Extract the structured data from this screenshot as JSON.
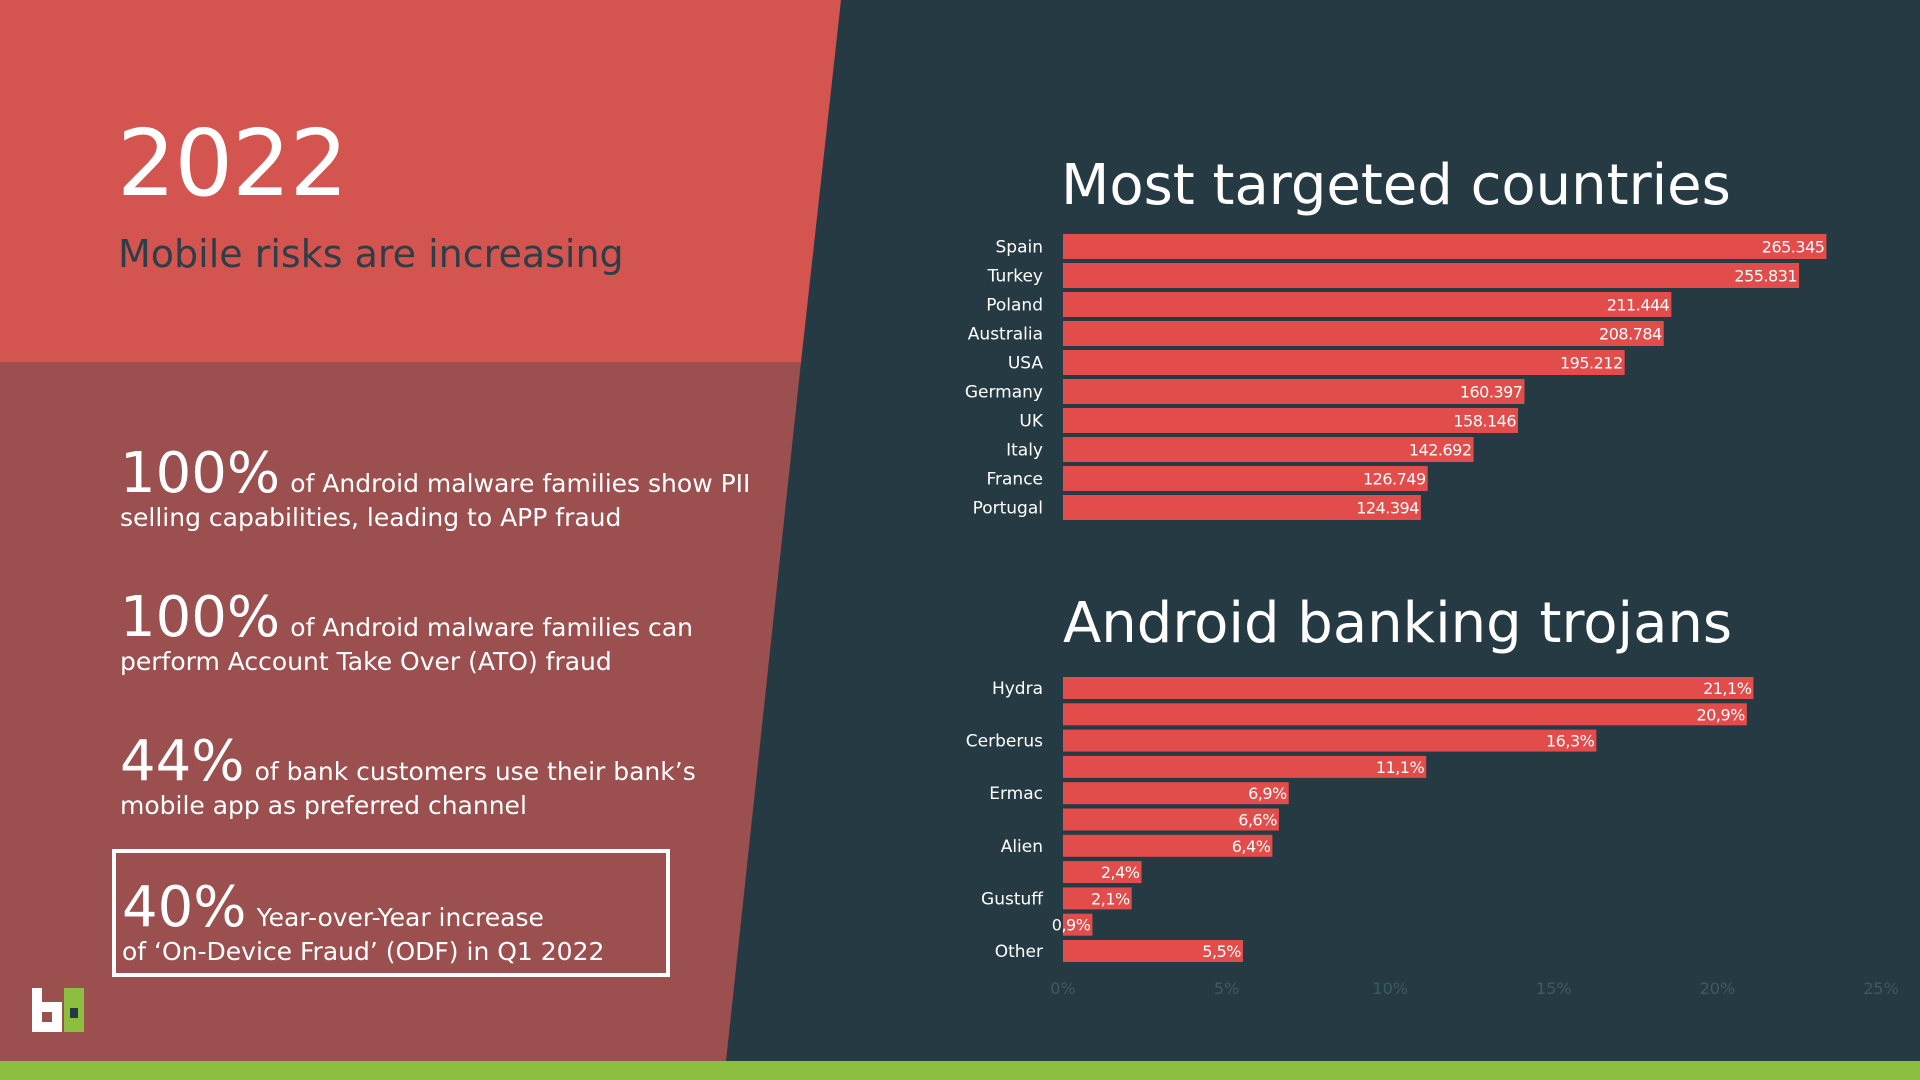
{
  "hero": {
    "year": "2022",
    "subtitle": "Mobile risks are increasing"
  },
  "stats": [
    {
      "big": "100%",
      "line1": "of Android malware families show PII",
      "line2": "selling capabilities, leading to APP fraud"
    },
    {
      "big": "100%",
      "line1": "of Android malware families can",
      "line2": "perform Account Take Over (ATO) fraud"
    },
    {
      "big": "44%",
      "line1": "of bank customers use their bank’s",
      "line2": "mobile app as preferred channel"
    },
    {
      "big": "40%",
      "line1": "Year-over-Year increase",
      "line2": "of ‘On-Device Fraud’ (ODF) in Q1 2022"
    }
  ],
  "colors": {
    "accent_red": "#e24c4b",
    "panel_top": "#d45550",
    "panel_bottom": "#9c4f4f",
    "background": "#263a44",
    "green_bar": "#8cbf3f"
  },
  "chart_data": [
    {
      "type": "bar",
      "orientation": "horizontal",
      "title": "Most targeted countries",
      "categories": [
        "Spain",
        "Turkey",
        "Poland",
        "Australia",
        "USA",
        "Germany",
        "UK",
        "Italy",
        "France",
        "Portugal"
      ],
      "values": [
        265345,
        255831,
        211444,
        208784,
        195212,
        160397,
        158146,
        142692,
        126749,
        124394
      ],
      "value_labels": [
        "265.345",
        "255.831",
        "211.444",
        "208.784",
        "195.212",
        "160.397",
        "158.146",
        "142.692",
        "126.749",
        "124.394"
      ],
      "xlim": [
        0,
        285000
      ],
      "grid": false
    },
    {
      "type": "bar",
      "orientation": "horizontal",
      "title": "Android banking trojans",
      "categories": [
        "Hydra",
        "",
        "Cerberus",
        "",
        "Ermac",
        "",
        "Alien",
        "",
        "Gustuff",
        "",
        "Other"
      ],
      "values": [
        21.1,
        20.9,
        16.3,
        11.1,
        6.9,
        6.6,
        6.4,
        2.4,
        2.1,
        0.9,
        5.5
      ],
      "value_labels": [
        "21,1%",
        "20,9%",
        "16,3%",
        "11,1%",
        "6,9%",
        "6,6%",
        "6,4%",
        "2,4%",
        "2,1%",
        "0,9%",
        "5,5%"
      ],
      "xlim": [
        0,
        25
      ],
      "xticks": [
        0,
        5,
        10,
        15,
        20,
        25
      ],
      "xtick_labels": [
        "0%",
        "5%",
        "10%",
        "15%",
        "20%",
        "25%"
      ],
      "grid": false
    }
  ]
}
